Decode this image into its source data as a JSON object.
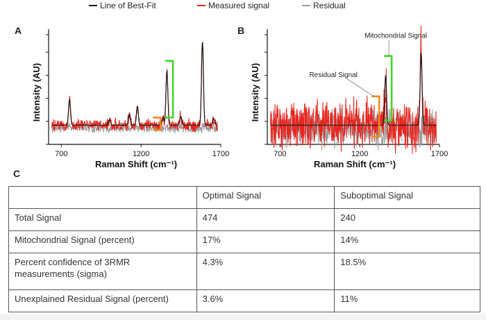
{
  "legend": [
    {
      "label": "Line of Best-Fit",
      "color": "#1a1a1a"
    },
    {
      "label": "Measured signal",
      "color": "#e8251f"
    },
    {
      "label": "Residual",
      "color": "#9a9a9a"
    }
  ],
  "panel_c_label": "C",
  "chart_data": [
    {
      "panel": "A",
      "type": "line",
      "xlabel": "Raman Shift (cm⁻¹)",
      "ylabel": "Intensity (AU)",
      "x_ticks": [
        "700",
        "1200",
        "1700"
      ],
      "xlim": [
        620,
        1700
      ],
      "ylim": [
        -0.2,
        1.0
      ],
      "yticks_count": 6,
      "annotations": [
        {
          "label": "",
          "kind": "bracket",
          "color": "#3fd42b",
          "x": 1400,
          "y_range": [
            0.08,
            0.67
          ]
        },
        {
          "label": "",
          "kind": "bracket",
          "color": "#ef8b22",
          "x": 1322,
          "y_range": [
            -0.05,
            0.08
          ]
        }
      ],
      "peaks": [
        {
          "x": 751,
          "height": 0.27
        },
        {
          "x": 1002,
          "height": 0.06
        },
        {
          "x": 1127,
          "height": 0.12
        },
        {
          "x": 1177,
          "height": 0.2
        },
        {
          "x": 1337,
          "height": 0.08
        },
        {
          "x": 1362,
          "height": 0.57
        },
        {
          "x": 1450,
          "height": 0.09
        },
        {
          "x": 1585,
          "height": 0.87
        },
        {
          "x": 1656,
          "height": 0.07
        }
      ],
      "noise": {
        "measured": 0.05,
        "residual": 0.04
      }
    },
    {
      "panel": "B",
      "type": "line",
      "xlabel": "Raman Shift (cm⁻¹)",
      "ylabel": "Intensity (AU)",
      "x_ticks": [
        "700",
        "1200",
        "1700"
      ],
      "xlim": [
        620,
        1700
      ],
      "ylim": [
        -0.2,
        1.0
      ],
      "yticks_count": 6,
      "annotations": [
        {
          "label": "Mitochondrial Signal",
          "kind": "bracket",
          "color": "#3fd42b",
          "x": 1400,
          "y_range": [
            0.05,
            0.72
          ]
        },
        {
          "label": "Residual Signal",
          "kind": "bracket",
          "color": "#ef8b22",
          "x": 1322,
          "y_range": [
            -0.12,
            0.3
          ]
        }
      ],
      "peaks": [
        {
          "x": 1362,
          "height": 0.52
        },
        {
          "x": 1585,
          "height": 0.76
        }
      ],
      "noise": {
        "measured": 0.2,
        "residual": 0.15
      }
    }
  ],
  "table": {
    "headers": [
      "",
      "Optimal Signal",
      "Suboptimal Signal"
    ],
    "rows": [
      [
        "Total Signal",
        "474",
        "240"
      ],
      [
        "Mitochondrial Signal (percent)",
        "17%",
        "14%"
      ],
      [
        "Percent confidence of 3RMR measurements (sigma)",
        "4.3%",
        "18.5%"
      ],
      [
        "Unexplained Residual Signal (percent)",
        "3.6%",
        "11%"
      ]
    ]
  }
}
